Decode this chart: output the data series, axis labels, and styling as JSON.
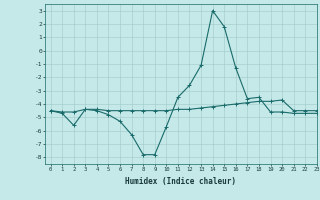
{
  "xlabel": "Humidex (Indice chaleur)",
  "ylabel": "",
  "xlim": [
    -0.5,
    23
  ],
  "ylim": [
    -8.5,
    3.5
  ],
  "yticks": [
    3,
    2,
    1,
    0,
    -1,
    -2,
    -3,
    -4,
    -5,
    -6,
    -7,
    -8
  ],
  "xticks": [
    0,
    1,
    2,
    3,
    4,
    5,
    6,
    7,
    8,
    9,
    10,
    11,
    12,
    13,
    14,
    15,
    16,
    17,
    18,
    19,
    20,
    21,
    22,
    23
  ],
  "line1_x": [
    0,
    1,
    2,
    3,
    4,
    5,
    6,
    7,
    8,
    9,
    10,
    11,
    12,
    13,
    14,
    15,
    16,
    17,
    18,
    19,
    20,
    21,
    22,
    23
  ],
  "line1_y": [
    -4.5,
    -4.7,
    -5.6,
    -4.4,
    -4.5,
    -4.8,
    -5.3,
    -6.3,
    -7.8,
    -7.8,
    -5.7,
    -3.5,
    -2.6,
    -1.1,
    3.0,
    1.8,
    -1.3,
    -3.6,
    -3.5,
    -4.6,
    -4.6,
    -4.7,
    -4.7,
    -4.7
  ],
  "line2_x": [
    0,
    1,
    2,
    3,
    4,
    5,
    6,
    7,
    8,
    9,
    10,
    11,
    12,
    13,
    14,
    15,
    16,
    17,
    18,
    19,
    20,
    21,
    22,
    23
  ],
  "line2_y": [
    -4.5,
    -4.6,
    -4.6,
    -4.4,
    -4.4,
    -4.5,
    -4.5,
    -4.5,
    -4.5,
    -4.5,
    -4.5,
    -4.4,
    -4.4,
    -4.3,
    -4.2,
    -4.1,
    -4.0,
    -3.9,
    -3.8,
    -3.8,
    -3.7,
    -4.5,
    -4.5,
    -4.5
  ],
  "line_color": "#1a6b6b",
  "bg_color": "#c5e8e8",
  "grid_color": "#a0c8c8",
  "marker": "+"
}
